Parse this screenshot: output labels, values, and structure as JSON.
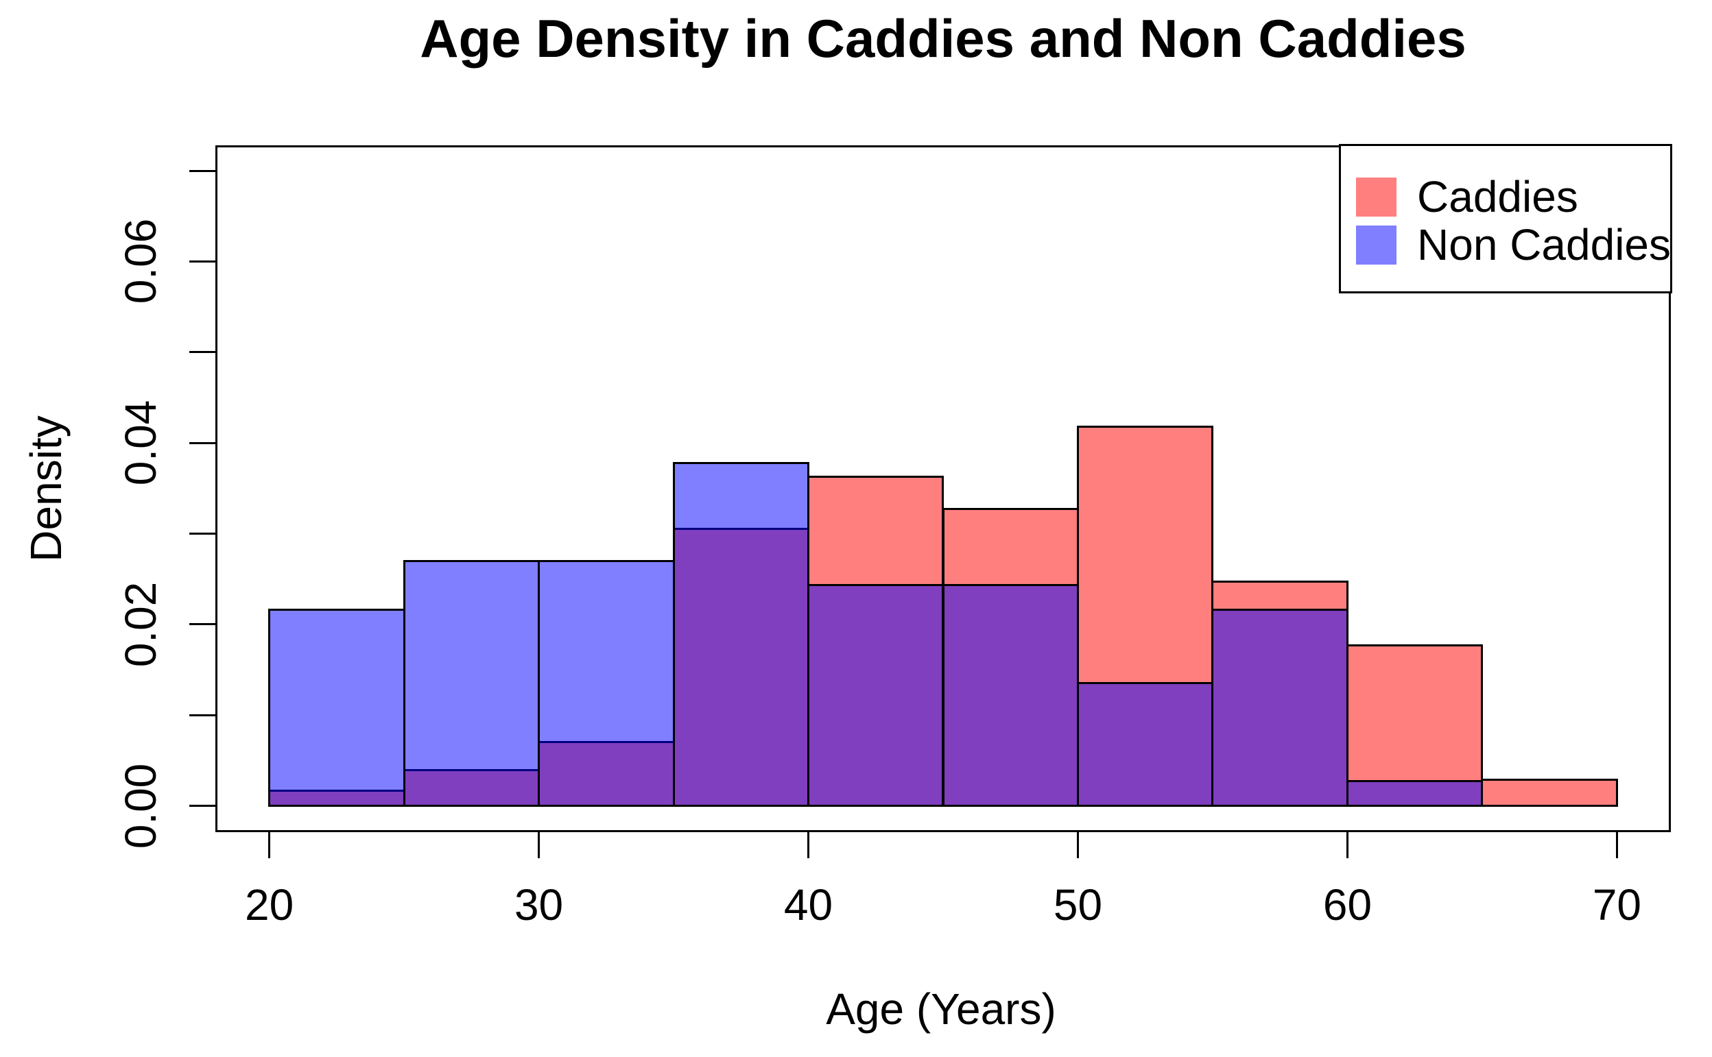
{
  "chart_data": {
    "type": "bar",
    "subtype": "overlaid-histogram",
    "title": "Age Density in Caddies and Non Caddies",
    "xlabel": "Age (Years)",
    "ylabel": "Density",
    "bin_edges": [
      20,
      25,
      30,
      35,
      40,
      45,
      50,
      55,
      60,
      65,
      70
    ],
    "series": [
      {
        "name": "Caddies",
        "base_color": "#FF0000",
        "fill_alpha": 0.5,
        "rendered_fill": "#FF7F7F",
        "values": [
          0.0017,
          0.0039,
          0.007,
          0.0305,
          0.0363,
          0.0327,
          0.0418,
          0.0247,
          0.0177,
          0.0029
        ]
      },
      {
        "name": "Non Caddies",
        "base_color": "#0000FF",
        "fill_alpha": 0.5,
        "rendered_fill": "#7F7FFF",
        "values": [
          0.0216,
          0.027,
          0.027,
          0.0378,
          0.0243,
          0.0243,
          0.0135,
          0.0216,
          0.0027,
          0
        ]
      }
    ],
    "draw_order": [
      "Caddies",
      "Non Caddies"
    ],
    "overlap_rendered_color": "#7F3FBF",
    "bar_border_color": "#000000",
    "xlim": [
      18,
      72
    ],
    "ylim": [
      -0.0029,
      0.0728
    ],
    "x_ticks": [
      20,
      30,
      40,
      50,
      60,
      70
    ],
    "x_tick_labels": [
      "20",
      "30",
      "40",
      "50",
      "60",
      "70"
    ],
    "y_ticks": [
      0,
      0.01,
      0.02,
      0.03,
      0.04,
      0.05,
      0.06,
      0.07
    ],
    "y_labeled_ticks": [
      {
        "value": 0,
        "label": "0.00"
      },
      {
        "value": 0.02,
        "label": "0.02"
      },
      {
        "value": 0.04,
        "label": "0.04"
      },
      {
        "value": 0.06,
        "label": "0.06"
      }
    ],
    "grid": false,
    "legend": {
      "position": "top-right",
      "entries": [
        {
          "label": "Caddies",
          "swatch_color": "#FF7F7F"
        },
        {
          "label": "Non Caddies",
          "swatch_color": "#7F7FFF"
        }
      ]
    }
  }
}
